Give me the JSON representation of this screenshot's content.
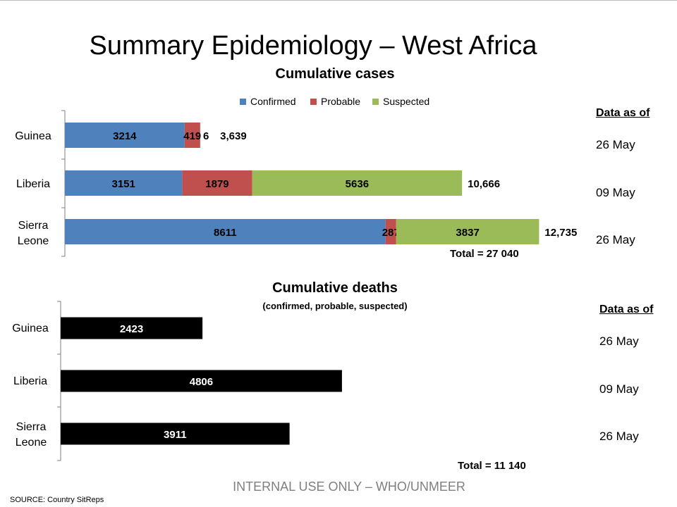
{
  "title": "Summary Epidemiology – West Africa",
  "footer": "INTERNAL USE ONLY – WHO/UNMEER",
  "source": "SOURCE: Country SitReps",
  "data_as_of_label": "Data as of",
  "colors": {
    "confirmed": "#4f81bd",
    "probable": "#c0504d",
    "suspected": "#9bbb59",
    "deaths": "#000000"
  },
  "chart_data": [
    {
      "type": "bar",
      "orientation": "horizontal",
      "stacked": true,
      "title": "Cumulative cases",
      "categories": [
        "Guinea",
        "Liberia",
        "Sierra Leone"
      ],
      "series": [
        {
          "name": "Confirmed",
          "values": [
            3214,
            3151,
            8611
          ]
        },
        {
          "name": "Probable",
          "values": [
            419,
            1879,
            287
          ]
        },
        {
          "name": "Suspected",
          "values": [
            6,
            5636,
            3837
          ]
        }
      ],
      "totals": [
        "3,639",
        "10,666",
        "12,735"
      ],
      "data_as_of": [
        "26 May",
        "09 May",
        "26 May"
      ],
      "grand_total": "Total = 27 040",
      "legend_position": "top",
      "grid": false
    },
    {
      "type": "bar",
      "orientation": "horizontal",
      "title": "Cumulative deaths",
      "subtitle": "(confirmed, probable, suspected)",
      "categories": [
        "Guinea",
        "Liberia",
        "Sierra Leone"
      ],
      "values": [
        2423,
        4806,
        3911
      ],
      "data_as_of": [
        "26 May",
        "09 May",
        "26 May"
      ],
      "grand_total": "Total = 11 140",
      "grid": false
    }
  ]
}
